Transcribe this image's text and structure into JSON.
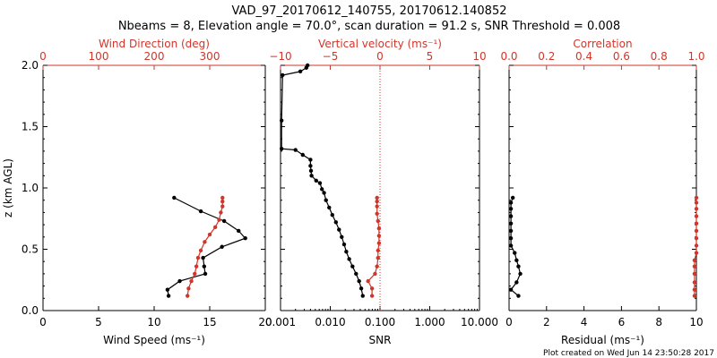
{
  "header": {
    "title": "VAD_97_20170612_140755, 20170612.140852",
    "subtitle": "Nbeams = 8, Elevation angle = 70.0°, scan duration = 91.2 s, SNR Threshold = 0.008"
  },
  "footer": {
    "plot_created": "Plot created on Wed Jun 14 23:50:28 2017"
  },
  "colors": {
    "black": "#000000",
    "red": "#d0362a"
  },
  "chart_data": [
    {
      "type": "line",
      "ylabel": "z (km AGL)",
      "ylim": [
        0,
        2
      ],
      "yticks": [
        "0.0",
        "0.5",
        "1.0",
        "1.5",
        "2.0"
      ],
      "bottom_axis": {
        "label": "Wind Speed (ms⁻¹)",
        "lim": [
          0,
          20
        ],
        "ticks": [
          "0",
          "5",
          "10",
          "15",
          "20"
        ]
      },
      "top_axis": {
        "label": "Wind Direction (deg)",
        "lim": [
          0,
          400
        ],
        "ticks": [
          "0",
          "100",
          "200",
          "300"
        ]
      },
      "series": [
        {
          "axis": "bottom",
          "color": "#000000",
          "x": [
            11.3,
            11.2,
            12.3,
            14.6,
            14.5,
            14.4,
            16.1,
            18.2,
            17.6,
            16.3,
            14.2,
            11.8
          ],
          "y": [
            0.12,
            0.17,
            0.24,
            0.3,
            0.36,
            0.43,
            0.52,
            0.59,
            0.65,
            0.73,
            0.81,
            0.92
          ]
        },
        {
          "axis": "top",
          "color": "#d0362a",
          "x": [
            260,
            262,
            267,
            273,
            276,
            279,
            284,
            291,
            300,
            310,
            317,
            320,
            323,
            323,
            323
          ],
          "y": [
            0.12,
            0.18,
            0.24,
            0.3,
            0.36,
            0.43,
            0.49,
            0.56,
            0.62,
            0.68,
            0.74,
            0.8,
            0.85,
            0.89,
            0.92
          ]
        }
      ]
    },
    {
      "type": "line",
      "ylim": [
        0,
        2
      ],
      "bottom_axis": {
        "label": "SNR",
        "scale": "log",
        "lim": [
          0.001,
          10
        ],
        "ticks": [
          "0.001",
          "0.010",
          "0.100",
          "1.000",
          "10.000"
        ],
        "tick_values": [
          0.001,
          0.01,
          0.1,
          1,
          10
        ]
      },
      "top_axis": {
        "label": "Vertical velocity (ms⁻¹)",
        "lim": [
          -10,
          10
        ],
        "ticks": [
          "−10",
          "−5",
          "0",
          "5",
          "10"
        ],
        "zero_line": "dotted"
      },
      "series": [
        {
          "axis": "bottom",
          "color": "#000000",
          "x": [
            0.045,
            0.042,
            0.038,
            0.033,
            0.028,
            0.024,
            0.021,
            0.019,
            0.017,
            0.015,
            0.013,
            0.011,
            0.0095,
            0.0082,
            0.0075,
            0.0068,
            0.0062,
            0.0052,
            0.0042,
            0.0041,
            0.004,
            0.004,
            0.0028,
            0.002,
            0.00105,
            0.00105,
            0.0011,
            0.0025,
            0.0033,
            0.0035
          ],
          "y": [
            0.12,
            0.18,
            0.24,
            0.3,
            0.36,
            0.42,
            0.48,
            0.54,
            0.6,
            0.66,
            0.72,
            0.78,
            0.84,
            0.9,
            0.96,
            0.99,
            1.04,
            1.06,
            1.1,
            1.14,
            1.18,
            1.23,
            1.27,
            1.31,
            1.32,
            1.55,
            1.92,
            1.95,
            1.98,
            2.0
          ]
        },
        {
          "axis": "top",
          "color": "#d0362a",
          "x": [
            -0.8,
            -0.8,
            -1.2,
            -0.5,
            -0.3,
            -0.2,
            -0.2,
            -0.1,
            -0.1,
            -0.1,
            -0.2,
            -0.3,
            -0.3,
            -0.3,
            -0.3
          ],
          "y": [
            0.12,
            0.18,
            0.24,
            0.3,
            0.36,
            0.43,
            0.49,
            0.55,
            0.61,
            0.67,
            0.73,
            0.79,
            0.85,
            0.89,
            0.92
          ]
        }
      ]
    },
    {
      "type": "line",
      "ylim": [
        0,
        2
      ],
      "bottom_axis": {
        "label": "Residual (ms⁻¹)",
        "lim": [
          0,
          10
        ],
        "ticks": [
          "0",
          "2",
          "4",
          "6",
          "8",
          "10"
        ]
      },
      "top_axis": {
        "label": "Correlation",
        "lim": [
          0,
          1
        ],
        "ticks": [
          "0.0",
          "0.2",
          "0.4",
          "0.6",
          "0.8",
          "1.0"
        ]
      },
      "series": [
        {
          "axis": "bottom",
          "color": "#000000",
          "x": [
            0.5,
            0.1,
            0.4,
            0.6,
            0.5,
            0.4,
            0.3,
            0.1,
            0.1,
            0.1,
            0.1,
            0.1,
            0.1,
            0.1,
            0.2
          ],
          "y": [
            0.12,
            0.17,
            0.23,
            0.3,
            0.36,
            0.41,
            0.47,
            0.53,
            0.59,
            0.65,
            0.71,
            0.77,
            0.83,
            0.88,
            0.92
          ]
        },
        {
          "axis": "top",
          "color": "#d0362a",
          "x": [
            0.99,
            0.99,
            0.99,
            0.99,
            0.99,
            0.99,
            1.0,
            1.0,
            1.0,
            1.0,
            1.0,
            1.0,
            1.0,
            1.0,
            1.0
          ],
          "y": [
            0.12,
            0.17,
            0.23,
            0.3,
            0.36,
            0.41,
            0.47,
            0.53,
            0.59,
            0.65,
            0.71,
            0.77,
            0.83,
            0.88,
            0.92
          ]
        }
      ]
    }
  ]
}
